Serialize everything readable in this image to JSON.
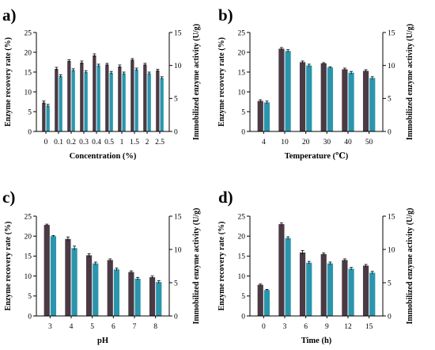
{
  "colors": {
    "recovery": "#4a3a44",
    "activity": "#2b95ad",
    "axis": "#000000"
  },
  "chart_data": [
    {
      "type": "bar",
      "letter": "a)",
      "categories": [
        "0",
        "0.1",
        "0.2",
        "0.3",
        "0.4",
        "0.5",
        "1",
        "1.5",
        "2",
        "2.5"
      ],
      "xlabel": "Concentration (%)",
      "ylabel": "Enzyme recovery rate (%)",
      "y2label": "Immobilized enzyme activity (U/g)",
      "ylim": [
        0,
        25
      ],
      "yticks": [
        0,
        5,
        10,
        15,
        20,
        25
      ],
      "y2lim": [
        0,
        15
      ],
      "y2ticks": [
        0,
        5,
        10,
        15
      ],
      "series": [
        {
          "axis": "left",
          "values": [
            7.3,
            15.8,
            17.8,
            17.4,
            19.2,
            16.9,
            16.4,
            18.1,
            16.9,
            15.4
          ],
          "errors": [
            0.4,
            0.4,
            0.3,
            0.4,
            0.4,
            0.3,
            0.4,
            0.3,
            0.3,
            0.3
          ]
        },
        {
          "axis": "right",
          "values": [
            3.9,
            8.4,
            9.3,
            9.0,
            10.0,
            8.9,
            8.8,
            9.4,
            8.8,
            8.1
          ],
          "errors": [
            0.2,
            0.2,
            0.2,
            0.2,
            0.2,
            0.2,
            0.2,
            0.2,
            0.2,
            0.2
          ]
        }
      ]
    },
    {
      "type": "bar",
      "letter": "b)",
      "categories": [
        "4",
        "10",
        "20",
        "30",
        "40",
        "50"
      ],
      "xlabel": "Temperature (℃)",
      "ylabel": "Enzyme recovery rate (%)",
      "y2label": "Immobilized enzyme activity (U/g)",
      "ylim": [
        0,
        25
      ],
      "yticks": [
        0,
        5,
        10,
        15,
        20,
        25
      ],
      "y2lim": [
        0,
        15
      ],
      "y2ticks": [
        0,
        5,
        10,
        15
      ],
      "series": [
        {
          "axis": "left",
          "values": [
            7.7,
            20.9,
            17.5,
            17.2,
            15.7,
            15.3
          ],
          "errors": [
            0.3,
            0.3,
            0.3,
            0.2,
            0.3,
            0.3
          ]
        },
        {
          "axis": "right",
          "values": [
            4.4,
            12.2,
            10.0,
            9.7,
            8.9,
            8.1
          ],
          "errors": [
            0.2,
            0.2,
            0.2,
            0.1,
            0.2,
            0.2
          ]
        }
      ]
    },
    {
      "type": "bar",
      "letter": "c)",
      "categories": [
        "3",
        "4",
        "5",
        "6",
        "7",
        "8"
      ],
      "xlabel": "pH",
      "ylabel": "Enzyme recovery rate (%)",
      "y2label": "Immobilized enzyme activity (U/g)",
      "ylim": [
        0,
        25
      ],
      "yticks": [
        0,
        5,
        10,
        15,
        20,
        25
      ],
      "y2lim": [
        0,
        15
      ],
      "y2ticks": [
        0,
        5,
        10,
        15
      ],
      "series": [
        {
          "axis": "left",
          "values": [
            22.8,
            19.3,
            15.2,
            14.0,
            11.0,
            9.7
          ],
          "errors": [
            0.2,
            0.5,
            0.4,
            0.3,
            0.3,
            0.3
          ]
        },
        {
          "axis": "right",
          "values": [
            12.0,
            10.2,
            7.9,
            7.0,
            5.6,
            5.1
          ],
          "errors": [
            0.1,
            0.3,
            0.2,
            0.2,
            0.2,
            0.2
          ]
        }
      ]
    },
    {
      "type": "bar",
      "letter": "d)",
      "categories": [
        "0",
        "3",
        "6",
        "9",
        "12",
        "15"
      ],
      "xlabel": "Time (h)",
      "ylabel": "Enzyme recovery rate (%)",
      "y2label": "Immobilized enzyme activity (U/g)",
      "ylim": [
        0,
        25
      ],
      "yticks": [
        0,
        5,
        10,
        15,
        20,
        25
      ],
      "y2lim": [
        0,
        15
      ],
      "y2ticks": [
        0,
        5,
        10,
        15
      ],
      "series": [
        {
          "axis": "left",
          "values": [
            7.8,
            23.0,
            15.9,
            15.5,
            14.0,
            12.6
          ],
          "errors": [
            0.2,
            0.3,
            0.5,
            0.3,
            0.3,
            0.3
          ]
        },
        {
          "axis": "right",
          "values": [
            3.9,
            11.7,
            8.0,
            7.9,
            7.1,
            6.5
          ],
          "errors": [
            0.1,
            0.2,
            0.2,
            0.2,
            0.2,
            0.2
          ]
        }
      ]
    }
  ]
}
